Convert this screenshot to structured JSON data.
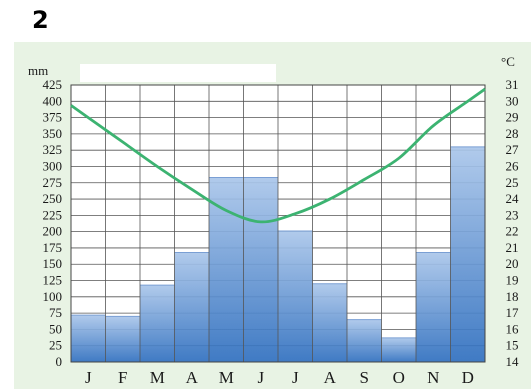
{
  "page_number": "2",
  "chart_data": {
    "type": "bar",
    "title": "",
    "categories": [
      "J",
      "F",
      "M",
      "A",
      "M",
      "J",
      "J",
      "A",
      "S",
      "O",
      "N",
      "D"
    ],
    "precipitation": {
      "unit": "mm",
      "ylim": [
        0,
        425
      ],
      "ticks": [
        0,
        25,
        50,
        75,
        100,
        125,
        150,
        175,
        200,
        225,
        250,
        275,
        300,
        325,
        350,
        375,
        400,
        425
      ],
      "values": [
        72,
        70,
        118,
        168,
        283,
        283,
        201,
        120,
        65,
        37,
        168,
        330
      ],
      "color": "#5b8fd0"
    },
    "temperature": {
      "unit": "°C",
      "ylim": [
        14,
        31
      ],
      "ticks": [
        14,
        15,
        16,
        17,
        18,
        19,
        20,
        21,
        22,
        23,
        24,
        25,
        26,
        27,
        28,
        29,
        30,
        31
      ],
      "values": [
        29.0,
        27.5,
        26.0,
        24.6,
        23.3,
        22.6,
        23.1,
        24.0,
        25.2,
        26.5,
        28.5,
        30.0
      ],
      "color": "#3cb371"
    },
    "grid": true
  }
}
